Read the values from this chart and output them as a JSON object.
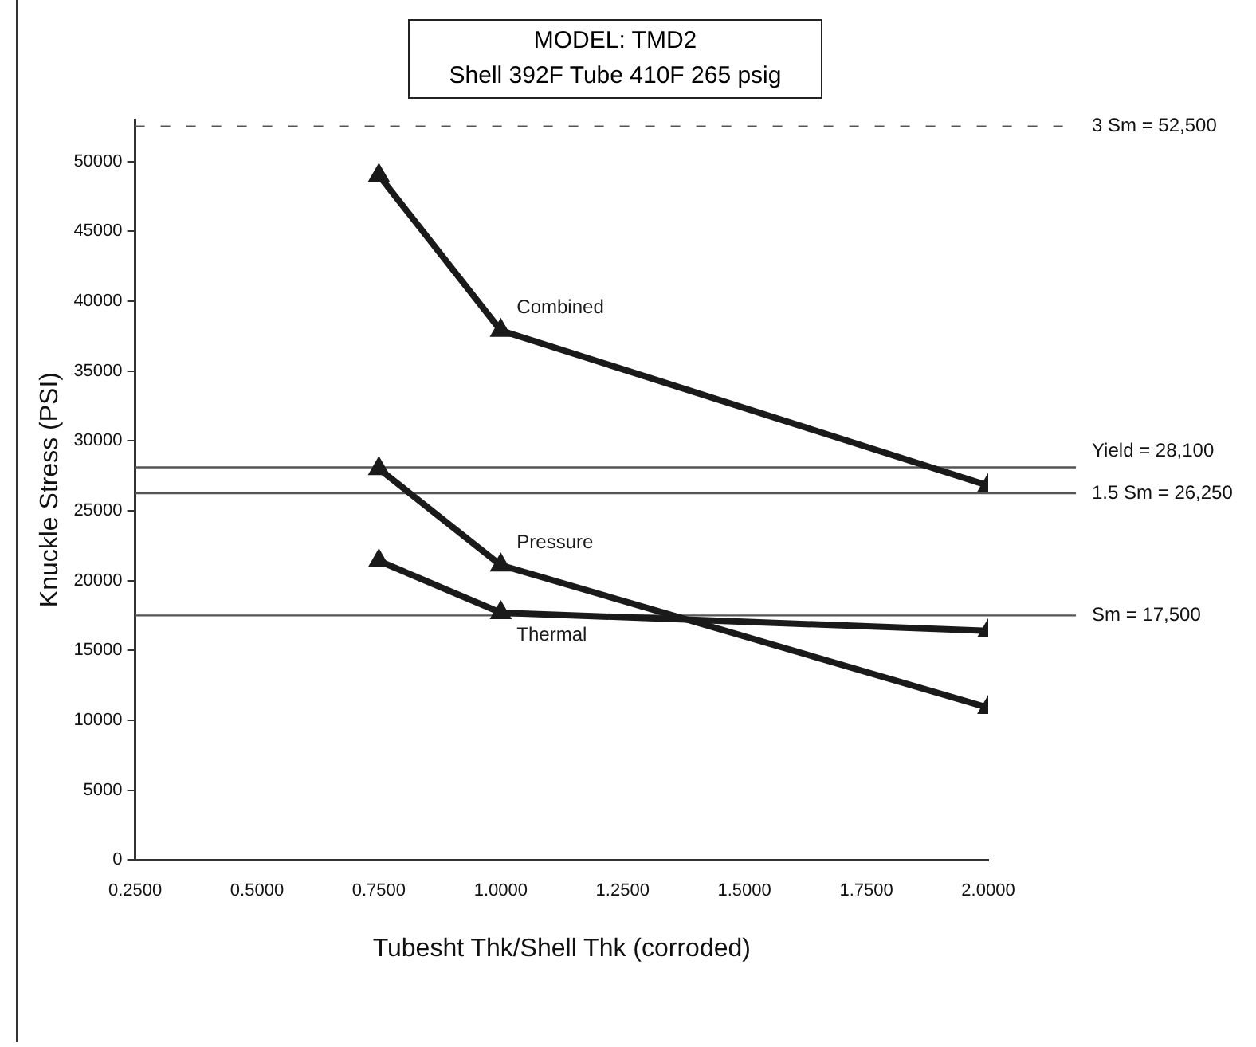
{
  "chart_data": {
    "type": "line",
    "title": "MODEL: TMD2",
    "subtitle": "Shell 392F  Tube 410F  265 psig",
    "xlabel": "Tubesht Thk/Shell Thk (corroded)",
    "ylabel": "Knuckle Stress (PSI)",
    "x": [
      0.75,
      1.0,
      2.0
    ],
    "series": [
      {
        "name": "Combined",
        "color": "#1a1a1a",
        "values": [
          49000,
          37900,
          26800
        ]
      },
      {
        "name": "Pressure",
        "color": "#1a1a1a",
        "values": [
          28000,
          21100,
          10900
        ]
      },
      {
        "name": "Thermal",
        "color": "#1a1a1a",
        "values": [
          21400,
          17700,
          16400
        ]
      }
    ],
    "xlim": [
      0.25,
      2.0
    ],
    "xticks": [
      {
        "value": 0.25,
        "label": "0.2500"
      },
      {
        "value": 0.5,
        "label": "0.5000"
      },
      {
        "value": 0.75,
        "label": "0.7500"
      },
      {
        "value": 1.0,
        "label": "1.0000"
      },
      {
        "value": 1.25,
        "label": "1.2500"
      },
      {
        "value": 1.5,
        "label": "1.5000"
      },
      {
        "value": 1.75,
        "label": "1.7500"
      },
      {
        "value": 2.0,
        "label": "2.0000"
      }
    ],
    "ylim": [
      0,
      53000
    ],
    "yticks": [
      0,
      5000,
      10000,
      15000,
      20000,
      25000,
      30000,
      35000,
      40000,
      45000,
      50000
    ],
    "ref_lines": [
      {
        "axis": "y",
        "value": 52500,
        "label": "3 Sm = 52,500",
        "color": "#555555",
        "line_style": "dashed"
      },
      {
        "axis": "y",
        "value": 28100,
        "label": "Yield = 28,100",
        "color": "#555555"
      },
      {
        "axis": "y",
        "value": 26250,
        "label": "1.5 Sm = 26,250",
        "color": "#555555"
      },
      {
        "axis": "y",
        "value": 17500,
        "label": "Sm = 17,500",
        "color": "#555555"
      }
    ],
    "marker": "triangle",
    "grid": false,
    "legend": false
  }
}
